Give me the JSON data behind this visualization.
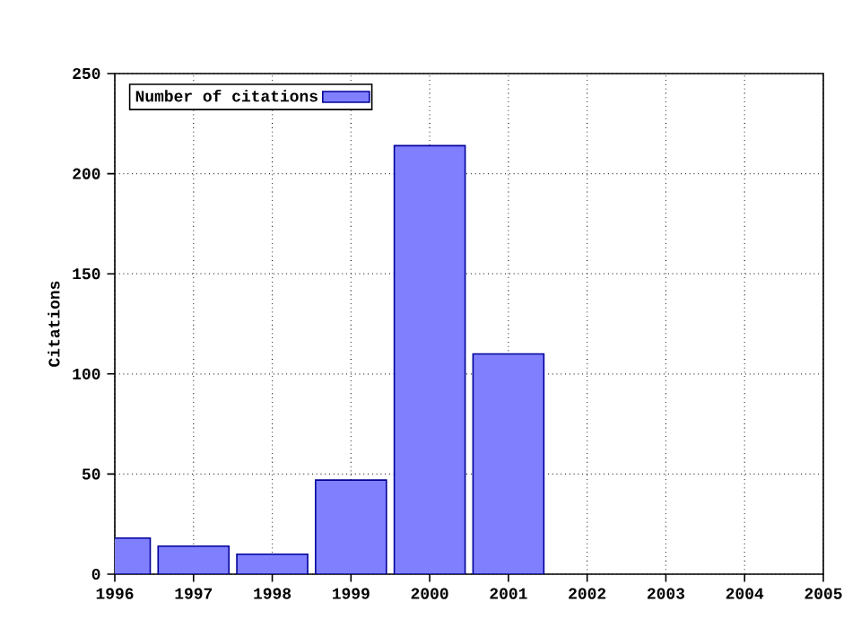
{
  "chart_data": {
    "type": "bar",
    "ylabel": "Citations",
    "x": [
      1996,
      1997,
      1998,
      1999,
      2000,
      2001
    ],
    "series": [
      {
        "name": "Number of citations",
        "color": "#8080ff",
        "values": [
          18,
          14,
          10,
          47,
          214,
          110
        ]
      }
    ],
    "xlim": [
      1996,
      2005
    ],
    "xticks": [
      1996,
      1997,
      1998,
      1999,
      2000,
      2001,
      2002,
      2003,
      2004,
      2005
    ],
    "ylim": [
      0,
      250
    ],
    "yticks": [
      0,
      50,
      100,
      150,
      200,
      250
    ],
    "grid": true,
    "legend": "top left"
  }
}
